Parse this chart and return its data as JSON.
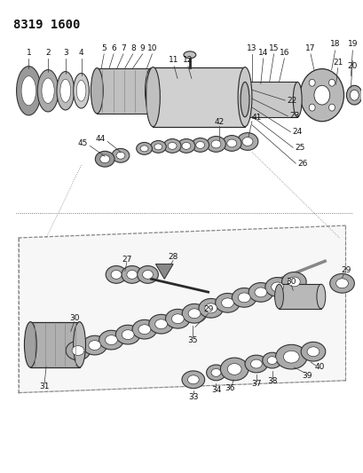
{
  "title": "8319 1600",
  "bg_color": "#ffffff",
  "fig_width": 4.1,
  "fig_height": 5.33,
  "dpi": 100,
  "line_color": "#2a2a2a",
  "part_color": "#888888",
  "light_part": "#bbbbbb",
  "dark_part": "#555555"
}
